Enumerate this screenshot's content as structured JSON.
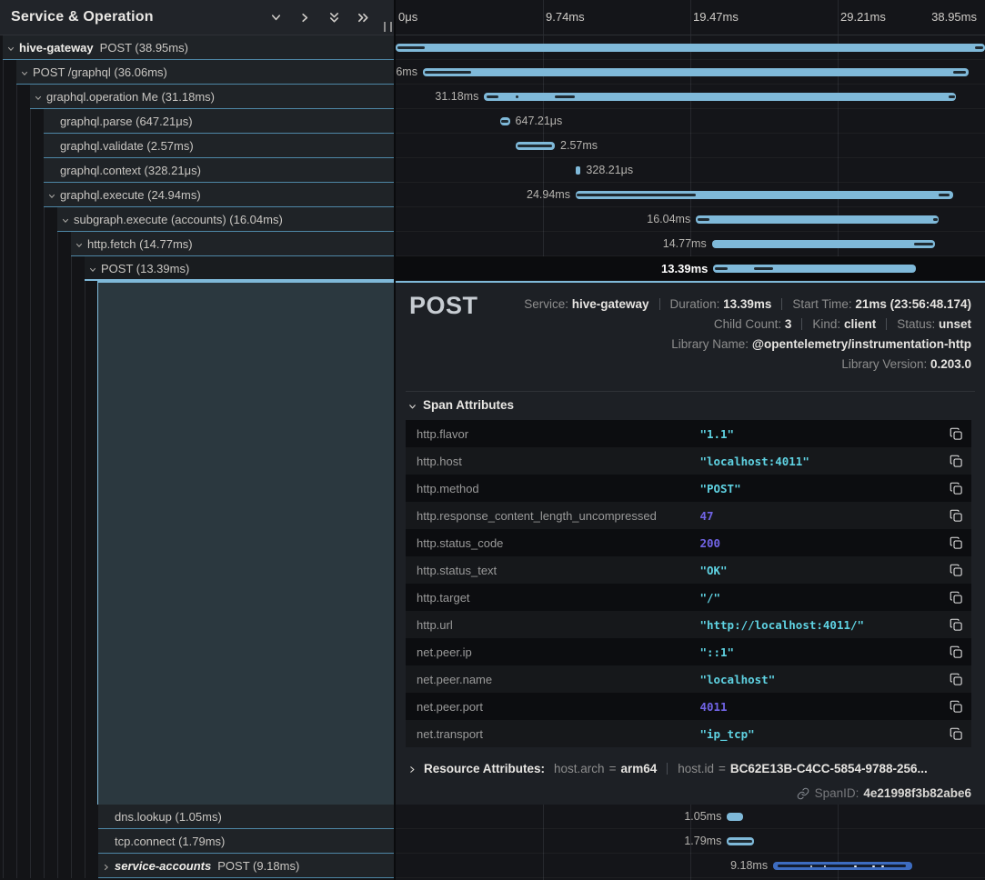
{
  "left_panel": {
    "title": "Service & Operation",
    "header_icons": [
      "chevron-down-icon",
      "chevron-right-icon",
      "chevrons-down-icon",
      "chevrons-right-icon"
    ]
  },
  "timeline": {
    "total_ms": 38.95,
    "ticks": [
      {
        "label": "0μs",
        "pct": 0,
        "align": "left"
      },
      {
        "label": "9.74ms",
        "pct": 25,
        "align": "left"
      },
      {
        "label": "19.47ms",
        "pct": 50,
        "align": "left"
      },
      {
        "label": "29.21ms",
        "pct": 75,
        "align": "left"
      },
      {
        "label": "38.95ms",
        "pct": 100,
        "align": "right"
      }
    ],
    "gridline_pcts": [
      25,
      50,
      75
    ]
  },
  "colors": {
    "accent_bar": "#7fb9d9",
    "other_service_bar": "#3d6cc0",
    "row_border": "#4e87a6",
    "selected_highlight": "#0b0c0e",
    "detail_region": "#2b383f",
    "string_value": "#5fd3e3",
    "number_value": "#7164e6"
  },
  "spans": [
    {
      "service": "hive-gateway",
      "italic": false,
      "label": "POST (38.95ms)",
      "depth": 0,
      "chevron": "down",
      "start_ms": 0.0,
      "dur_ms": 38.95,
      "dur_label": "38.95ms",
      "label_side": "none",
      "color": "accent",
      "ticks": [
        [
          0.15,
          1.95
        ],
        [
          38.3,
          38.85
        ]
      ],
      "dots": [],
      "selected": false,
      "group": "top"
    },
    {
      "service": null,
      "italic": false,
      "label": "POST /graphql (36.06ms)",
      "depth": 1,
      "chevron": "down",
      "start_ms": 1.8,
      "dur_ms": 36.06,
      "dur_label": "36.06ms",
      "label_side": "left",
      "color": "accent",
      "ticks": [
        [
          1.95,
          5.0
        ],
        [
          36.85,
          37.7
        ]
      ],
      "dots": [],
      "selected": false,
      "group": "top"
    },
    {
      "service": null,
      "italic": false,
      "label": "graphql.operation Me (31.18ms)",
      "depth": 2,
      "chevron": "down",
      "start_ms": 5.85,
      "dur_ms": 31.18,
      "dur_label": "31.18ms",
      "label_side": "left",
      "color": "accent",
      "ticks": [
        [
          6.0,
          6.8
        ],
        [
          7.95,
          8.1
        ],
        [
          10.5,
          11.85
        ],
        [
          36.55,
          36.95
        ]
      ],
      "dots": [],
      "selected": false,
      "group": "top"
    },
    {
      "service": null,
      "italic": false,
      "label": "graphql.parse (647.21μs)",
      "depth": 3,
      "chevron": null,
      "start_ms": 6.9,
      "dur_ms": 0.647,
      "dur_label": "647.21μs",
      "label_side": "right",
      "color": "accent",
      "ticks": [
        [
          6.98,
          7.45
        ]
      ],
      "dots": [],
      "selected": false,
      "group": "top"
    },
    {
      "service": null,
      "italic": false,
      "label": "graphql.validate (2.57ms)",
      "depth": 3,
      "chevron": null,
      "start_ms": 7.95,
      "dur_ms": 2.57,
      "dur_label": "2.57ms",
      "label_side": "right",
      "color": "accent",
      "ticks": [
        [
          8.05,
          10.35
        ]
      ],
      "dots": [],
      "selected": false,
      "group": "top"
    },
    {
      "service": null,
      "italic": false,
      "label": "graphql.context (328.21μs)",
      "depth": 3,
      "chevron": null,
      "start_ms": 11.9,
      "dur_ms": 0.328,
      "dur_label": "328.21μs",
      "label_side": "right",
      "color": "accent",
      "ticks": [],
      "dots": [],
      "selected": false,
      "group": "top"
    },
    {
      "service": null,
      "italic": false,
      "label": "graphql.execute (24.94ms)",
      "depth": 3,
      "chevron": "down",
      "start_ms": 11.9,
      "dur_ms": 24.94,
      "dur_label": "24.94ms",
      "label_side": "left",
      "color": "accent",
      "ticks": [
        [
          11.98,
          19.85
        ],
        [
          35.9,
          36.6
        ]
      ],
      "dots": [],
      "selected": false,
      "group": "top"
    },
    {
      "service": null,
      "italic": false,
      "label": "subgraph.execute (accounts) (16.04ms)",
      "depth": 4,
      "chevron": "down",
      "start_ms": 19.85,
      "dur_ms": 16.04,
      "dur_label": "16.04ms",
      "label_side": "left",
      "color": "accent",
      "ticks": [
        [
          19.95,
          20.75
        ],
        [
          35.55,
          35.8
        ]
      ],
      "dots": [],
      "selected": false,
      "group": "top"
    },
    {
      "service": null,
      "italic": false,
      "label": "http.fetch (14.77ms)",
      "depth": 5,
      "chevron": "down",
      "start_ms": 20.9,
      "dur_ms": 14.77,
      "dur_label": "14.77ms",
      "label_side": "left",
      "color": "accent",
      "ticks": [
        [
          34.25,
          35.55
        ]
      ],
      "dots": [],
      "selected": false,
      "group": "top"
    },
    {
      "service": null,
      "italic": false,
      "label": "POST (13.39ms)",
      "depth": 6,
      "chevron": "down",
      "start_ms": 21.0,
      "dur_ms": 13.39,
      "dur_label": "13.39ms",
      "label_side": "left",
      "color": "accent",
      "ticks": [
        [
          21.08,
          21.95
        ],
        [
          23.7,
          24.95
        ]
      ],
      "dots": [],
      "selected": true,
      "group": "top"
    },
    {
      "service": null,
      "italic": false,
      "label": "dns.lookup (1.05ms)",
      "depth": 7,
      "chevron": null,
      "start_ms": 21.9,
      "dur_ms": 1.05,
      "dur_label": "1.05ms",
      "label_side": "left",
      "color": "accent",
      "ticks": [],
      "dots": [],
      "selected": false,
      "group": "bottom"
    },
    {
      "service": null,
      "italic": false,
      "label": "tcp.connect (1.79ms)",
      "depth": 7,
      "chevron": null,
      "start_ms": 21.9,
      "dur_ms": 1.79,
      "dur_label": "1.79ms",
      "label_side": "left",
      "color": "accent",
      "ticks": [
        [
          22.0,
          23.55
        ]
      ],
      "dots": [],
      "selected": false,
      "group": "bottom"
    },
    {
      "service": "service-accounts",
      "italic": true,
      "label": "POST (9.18ms)",
      "depth": 7,
      "chevron": "right",
      "start_ms": 24.95,
      "dur_ms": 9.18,
      "dur_label": "9.18ms",
      "label_side": "left",
      "color": "blue",
      "ticks": [
        [
          25.25,
          33.75
        ]
      ],
      "dots": [
        27.4,
        28.3,
        30.3,
        31.5,
        32.1
      ],
      "selected": false,
      "group": "bottom"
    }
  ],
  "detail": {
    "title": "POST",
    "meta_lines": [
      [
        {
          "label": "Service:",
          "value": "hive-gateway"
        },
        {
          "label": "Duration:",
          "value": "13.39ms"
        },
        {
          "label": "Start Time:",
          "value": "21ms (23:56:48.174)"
        }
      ],
      [
        {
          "label": "Child Count:",
          "value": "3"
        },
        {
          "label": "Kind:",
          "value": "client"
        },
        {
          "label": "Status:",
          "value": "unset"
        }
      ],
      [
        {
          "label": "Library Name:",
          "value": "@opentelemetry/instrumentation-http"
        }
      ],
      [
        {
          "label": "Library Version:",
          "value": "0.203.0"
        }
      ]
    ],
    "span_attributes": {
      "label": "Span Attributes",
      "rows": [
        {
          "key": "http.flavor",
          "value": "\"1.1\"",
          "type": "string"
        },
        {
          "key": "http.host",
          "value": "\"localhost:4011\"",
          "type": "string"
        },
        {
          "key": "http.method",
          "value": "\"POST\"",
          "type": "string"
        },
        {
          "key": "http.response_content_length_uncompressed",
          "value": "47",
          "type": "number"
        },
        {
          "key": "http.status_code",
          "value": "200",
          "type": "number"
        },
        {
          "key": "http.status_text",
          "value": "\"OK\"",
          "type": "string"
        },
        {
          "key": "http.target",
          "value": "\"/\"",
          "type": "string"
        },
        {
          "key": "http.url",
          "value": "\"http://localhost:4011/\"",
          "type": "string"
        },
        {
          "key": "net.peer.ip",
          "value": "\"::1\"",
          "type": "string"
        },
        {
          "key": "net.peer.name",
          "value": "\"localhost\"",
          "type": "string"
        },
        {
          "key": "net.peer.port",
          "value": "4011",
          "type": "number"
        },
        {
          "key": "net.transport",
          "value": "\"ip_tcp\"",
          "type": "string"
        }
      ]
    },
    "resource": {
      "label": "Resource Attributes:",
      "pairs": [
        {
          "key": "host.arch",
          "value": "arm64"
        },
        {
          "key": "host.id",
          "value": "BC62E13B-C4CC-5854-9788-256..."
        }
      ]
    },
    "span_id": {
      "label": "SpanID:",
      "value": "4e21998f3b82abe6"
    }
  }
}
